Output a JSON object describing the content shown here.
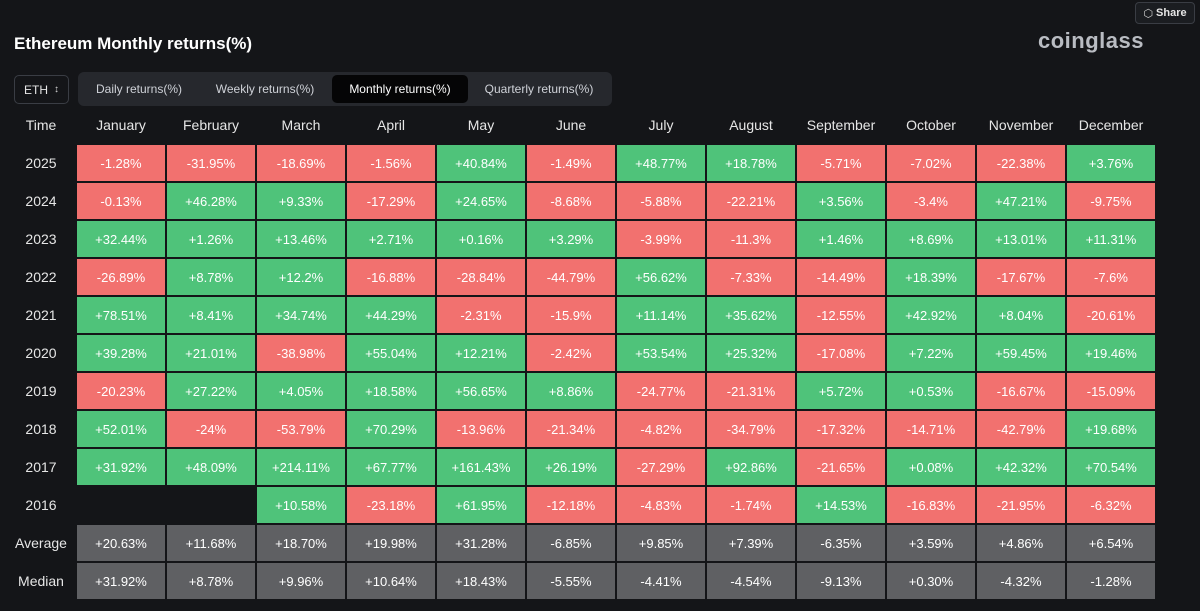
{
  "header": {
    "share_label": "Share",
    "share_icon": "share-icon",
    "title": "Ethereum Monthly returns(%)",
    "logo": "coinglass"
  },
  "coin_select": {
    "value": "ETH",
    "icon": "chevron-updown-icon"
  },
  "tabs": [
    {
      "label": "Daily returns(%)",
      "active": false
    },
    {
      "label": "Weekly returns(%)",
      "active": false
    },
    {
      "label": "Monthly returns(%)",
      "active": true
    },
    {
      "label": "Quarterly returns(%)",
      "active": false
    }
  ],
  "colors": {
    "positive": "#4fc37a",
    "negative": "#f2716f",
    "stat": "#5f6063"
  },
  "table": {
    "columns": [
      "Time",
      "January",
      "February",
      "March",
      "April",
      "May",
      "June",
      "July",
      "August",
      "September",
      "October",
      "November",
      "December"
    ],
    "rows": [
      {
        "label": "2025",
        "values": [
          "-1.28%",
          "-31.95%",
          "-18.69%",
          "-1.56%",
          "+40.84%",
          "-1.49%",
          "+48.77%",
          "+18.78%",
          "-5.71%",
          "-7.02%",
          "-22.38%",
          "+3.76%"
        ]
      },
      {
        "label": "2024",
        "values": [
          "-0.13%",
          "+46.28%",
          "+9.33%",
          "-17.29%",
          "+24.65%",
          "-8.68%",
          "-5.88%",
          "-22.21%",
          "+3.56%",
          "-3.4%",
          "+47.21%",
          "-9.75%"
        ]
      },
      {
        "label": "2023",
        "values": [
          "+32.44%",
          "+1.26%",
          "+13.46%",
          "+2.71%",
          "+0.16%",
          "+3.29%",
          "-3.99%",
          "-11.3%",
          "+1.46%",
          "+8.69%",
          "+13.01%",
          "+11.31%"
        ]
      },
      {
        "label": "2022",
        "values": [
          "-26.89%",
          "+8.78%",
          "+12.2%",
          "-16.88%",
          "-28.84%",
          "-44.79%",
          "+56.62%",
          "-7.33%",
          "-14.49%",
          "+18.39%",
          "-17.67%",
          "-7.6%"
        ]
      },
      {
        "label": "2021",
        "values": [
          "+78.51%",
          "+8.41%",
          "+34.74%",
          "+44.29%",
          "-2.31%",
          "-15.9%",
          "+11.14%",
          "+35.62%",
          "-12.55%",
          "+42.92%",
          "+8.04%",
          "-20.61%"
        ]
      },
      {
        "label": "2020",
        "values": [
          "+39.28%",
          "+21.01%",
          "-38.98%",
          "+55.04%",
          "+12.21%",
          "-2.42%",
          "+53.54%",
          "+25.32%",
          "-17.08%",
          "+7.22%",
          "+59.45%",
          "+19.46%"
        ]
      },
      {
        "label": "2019",
        "values": [
          "-20.23%",
          "+27.22%",
          "+4.05%",
          "+18.58%",
          "+56.65%",
          "+8.86%",
          "-24.77%",
          "-21.31%",
          "+5.72%",
          "+0.53%",
          "-16.67%",
          "-15.09%"
        ]
      },
      {
        "label": "2018",
        "values": [
          "+52.01%",
          "-24%",
          "-53.79%",
          "+70.29%",
          "-13.96%",
          "-21.34%",
          "-4.82%",
          "-34.79%",
          "-17.32%",
          "-14.71%",
          "-42.79%",
          "+19.68%"
        ]
      },
      {
        "label": "2017",
        "values": [
          "+31.92%",
          "+48.09%",
          "+214.11%",
          "+67.77%",
          "+161.43%",
          "+26.19%",
          "-27.29%",
          "+92.86%",
          "-21.65%",
          "+0.08%",
          "+42.32%",
          "+70.54%"
        ]
      },
      {
        "label": "2016",
        "values": [
          "",
          "",
          "+10.58%",
          "-23.18%",
          "+61.95%",
          "-12.18%",
          "-4.83%",
          "-1.74%",
          "+14.53%",
          "-16.83%",
          "-21.95%",
          "-6.32%"
        ]
      },
      {
        "label": "Average",
        "stat": true,
        "values": [
          "+20.63%",
          "+11.68%",
          "+18.70%",
          "+19.98%",
          "+31.28%",
          "-6.85%",
          "+9.85%",
          "+7.39%",
          "-6.35%",
          "+3.59%",
          "+4.86%",
          "+6.54%"
        ]
      },
      {
        "label": "Median",
        "stat": true,
        "values": [
          "+31.92%",
          "+8.78%",
          "+9.96%",
          "+10.64%",
          "+18.43%",
          "-5.55%",
          "-4.41%",
          "-4.54%",
          "-9.13%",
          "+0.30%",
          "-4.32%",
          "-1.28%"
        ]
      }
    ]
  }
}
